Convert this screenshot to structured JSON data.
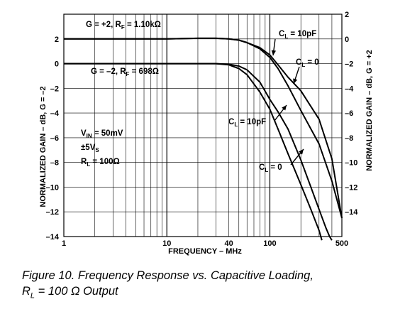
{
  "chart_data": {
    "type": "line",
    "xlabel": "FREQUENCY – MHz",
    "ylabel_left": "NORMALIZED GAIN – dB, G = –2",
    "ylabel_right": "NORMALIZED GAIN – dB, G = +2",
    "x_scale": "log",
    "xlim": [
      1,
      500
    ],
    "ylim_left": [
      -14,
      4
    ],
    "ylim_right": [
      -16,
      2
    ],
    "x_tick_labels": [
      "1",
      "10",
      "40",
      "100",
      "500"
    ],
    "x_tick_values": [
      1,
      10,
      40,
      100,
      500
    ],
    "y_left_tick_labels": [
      "2",
      "0",
      "–2",
      "–4",
      "–6",
      "–8",
      "–10",
      "–12",
      "–14"
    ],
    "y_left_tick_values": [
      2,
      0,
      -2,
      -4,
      -6,
      -8,
      -10,
      -12,
      -14
    ],
    "y_right_tick_labels": [
      "2",
      "0",
      "–2",
      "–4",
      "–6",
      "–8",
      "–10",
      "–12",
      "–14"
    ],
    "y_right_tick_values": [
      2,
      0,
      -2,
      -4,
      -6,
      -8,
      -10,
      -12,
      -14
    ],
    "grid": true,
    "series": [
      {
        "axis": "right",
        "x": [
          1,
          10,
          20,
          30,
          40,
          50,
          60,
          80,
          100,
          120,
          150,
          200,
          300,
          400,
          500
        ],
        "y": [
          0,
          0,
          0.05,
          0.05,
          0,
          -0.1,
          -0.3,
          -0.7,
          -1.3,
          -2.1,
          -3.1,
          -4.2,
          -6.5,
          -9.7,
          -14.5
        ]
      },
      {
        "axis": "right",
        "x": [
          1,
          10,
          20,
          30,
          40,
          50,
          60,
          80,
          100,
          120,
          150,
          200,
          300,
          400,
          500
        ],
        "y": [
          0,
          0,
          0.05,
          0.05,
          0,
          -0.1,
          -0.3,
          -0.8,
          -1.5,
          -2.4,
          -3.8,
          -5.8,
          -8.5,
          -11.5,
          -14.5
        ]
      },
      {
        "axis": "left",
        "x": [
          1,
          10,
          20,
          30,
          40,
          50,
          60,
          80,
          100,
          120,
          150,
          200,
          250,
          300,
          350,
          380,
          400
        ],
        "y": [
          0,
          0,
          0,
          0,
          -0.05,
          -0.2,
          -0.5,
          -1.5,
          -2.9,
          -3.9,
          -5.3,
          -7.8,
          -10,
          -11.8,
          -13.3,
          -14,
          -14.3
        ]
      },
      {
        "axis": "left",
        "x": [
          1,
          10,
          20,
          30,
          40,
          50,
          60,
          80,
          100,
          120,
          150,
          200,
          250,
          300,
          320
        ],
        "y": [
          0,
          0,
          0,
          0,
          -0.1,
          -0.4,
          -0.9,
          -2.3,
          -3.7,
          -5.3,
          -7.3,
          -9.8,
          -11.8,
          -13.5,
          -14.3
        ]
      }
    ],
    "annotations": {
      "g_pos": {
        "main": "G = +2, R",
        "sub": "F",
        "rest": " = 1.10kΩ"
      },
      "g_neg": {
        "main": "G = –2, R",
        "sub": "F",
        "rest": " = 698Ω"
      },
      "cl10_upper": {
        "main": "C",
        "sub": "L",
        "rest": " = 10pF"
      },
      "cl0_upper": {
        "main": "C",
        "sub": "L",
        "rest": " = 0"
      },
      "cl10_lower": {
        "main": "C",
        "sub": "L",
        "rest": " = 10pF"
      },
      "cl0_lower": {
        "main": "C",
        "sub": "L",
        "rest": " = 0"
      },
      "vin": {
        "main": "V",
        "sub": "IN",
        "rest": " = 50mV"
      },
      "vs": {
        "main": "±5V",
        "sub": "S",
        "rest": ""
      },
      "rl": {
        "main": "R",
        "sub": "L",
        "rest": " = 100Ω"
      }
    }
  },
  "caption": {
    "line1": "Figure 10.  Frequency Response vs. Capacitive Loading,",
    "line2_prefix": "R",
    "line2_sub": "L",
    "line2_rest": " = 100 Ω Output"
  }
}
